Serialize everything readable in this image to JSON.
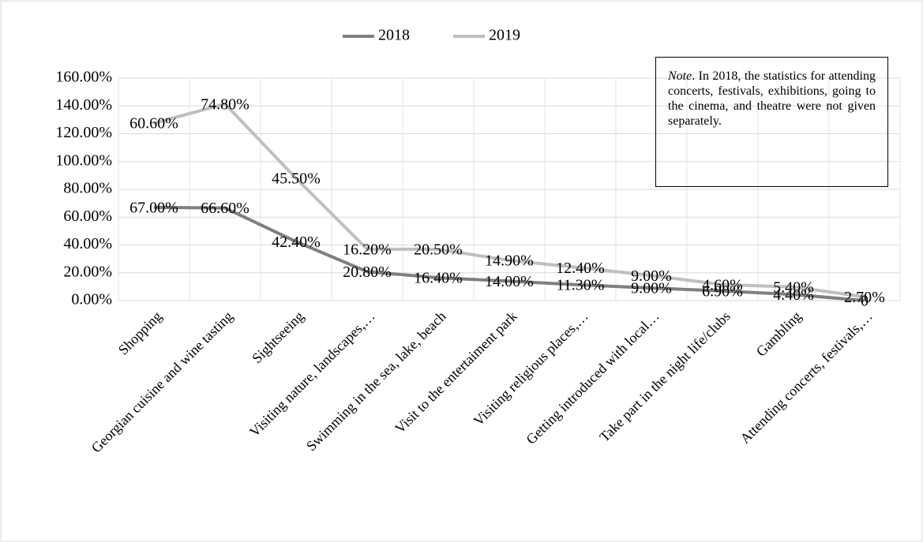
{
  "chart_data": {
    "type": "line",
    "stacked": true,
    "categories": [
      "Shopping",
      "Georgian cuisine and wine tasting",
      "Sightseeing",
      "Visiting nature, landscapes,…",
      "Swimming in the sea, lake, beach",
      "Visit to the entertaiment park",
      "Visiting religious places,…",
      "Getting introduced with local…",
      "Take part in the night life/clubs",
      "Gambling",
      "Attending concerts, festivals,…"
    ],
    "series": [
      {
        "name": "2018",
        "color": "#7f7f7f",
        "values": [
          67.0,
          66.6,
          42.4,
          20.8,
          16.4,
          14.0,
          11.3,
          9.0,
          6.9,
          4.4,
          0
        ],
        "value_labels": [
          "67.00%",
          "66.60%",
          "42.40%",
          "20.80%",
          "16.40%",
          "14.00%",
          "11.30%",
          "9.00%",
          "6.90%",
          "4.40%",
          "0"
        ]
      },
      {
        "name": "2019",
        "color": "#bfbfbf",
        "values": [
          60.6,
          74.8,
          45.5,
          16.2,
          20.5,
          14.9,
          12.4,
          9.0,
          4.6,
          5.4,
          2.7
        ],
        "value_labels": [
          "60.60%",
          "74.80%",
          "45.50%",
          "16.20%",
          "20.50%",
          "14.90%",
          "12.40%",
          "9.00%",
          "4.60%",
          "5.40%",
          "2.70%"
        ]
      }
    ],
    "ylim": [
      0,
      160
    ],
    "yticks": [
      {
        "value": 0,
        "label": "0.00%"
      },
      {
        "value": 20,
        "label": "20.00%"
      },
      {
        "value": 40,
        "label": "40.00%"
      },
      {
        "value": 60,
        "label": "60.00%"
      },
      {
        "value": 80,
        "label": "80.00%"
      },
      {
        "value": 100,
        "label": "100.00%"
      },
      {
        "value": 120,
        "label": "120.00%"
      },
      {
        "value": 140,
        "label": "140.00%"
      },
      {
        "value": 160,
        "label": "160.00%"
      }
    ],
    "grid": true,
    "legend": "top",
    "annotation": {
      "label": "Note",
      "text": ". In 2018, the statistics for attending concerts, festivals, exhibitions, going to the cinema, and theatre were not given separately."
    }
  }
}
